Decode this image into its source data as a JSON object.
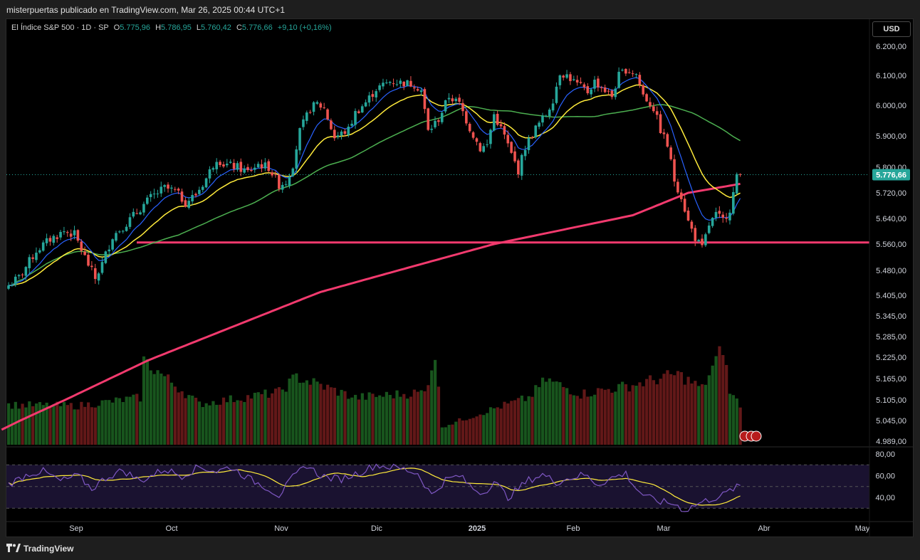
{
  "header": {
    "attribution": "misterpuertas publicado en TradingView.com, Mar 26, 2025 00:44 UTC+1"
  },
  "legend": {
    "symbol": "El Índice S&P 500 · 1D · SP",
    "open_label": "O",
    "open": "5.775,96",
    "high_label": "H",
    "high": "5.786,95",
    "low_label": "L",
    "low": "5.760,42",
    "close_label": "C",
    "close": "5.776,66",
    "change": "+9,10 (+0,16%)"
  },
  "currency_button": "USD",
  "footer": {
    "brand": "TradingView"
  },
  "colors": {
    "up": "#26a69a",
    "down": "#ef5350",
    "ema_fast": "#2962ff",
    "ema_mid": "#ffeb3b",
    "sma_50": "#4caf50",
    "sma_200": "#f23a6e",
    "support": "#f23a6e",
    "rsi": "#7e57c2",
    "rsi_ma": "#ffeb3b",
    "price_label_bg": "#26a69a"
  },
  "chart_data": {
    "type": "candlestick",
    "current_price_label": "5.776,66",
    "price_axis_ticks": [
      "6.200,00",
      "6.100,00",
      "6.000,00",
      "5.900,00",
      "5.800,00",
      "5.720,00",
      "5.640,00",
      "5.560,00",
      "5.480,00",
      "5.405,00",
      "5.345,00",
      "5.285,00",
      "5.225,00",
      "5.165,00",
      "5.105,00",
      "5.045,00",
      "4.989,00"
    ],
    "price_axis_values": [
      6200,
      6100,
      6000,
      5900,
      5800,
      5720,
      5640,
      5560,
      5480,
      5405,
      5345,
      5285,
      5225,
      5165,
      5105,
      5045,
      4989
    ],
    "time_axis_ticks": [
      "Sep",
      "Oct",
      "Nov",
      "Dic",
      "2025",
      "Feb",
      "Mar",
      "Abr",
      "May"
    ],
    "ylim": [
      4989,
      6230
    ],
    "horizontal_line": 5565,
    "close_anchors": [
      [
        0,
        5435
      ],
      [
        3,
        5458
      ],
      [
        8,
        5540
      ],
      [
        12,
        5575
      ],
      [
        16,
        5600
      ],
      [
        19,
        5590
      ],
      [
        22,
        5520
      ],
      [
        25,
        5455
      ],
      [
        27,
        5500
      ],
      [
        30,
        5585
      ],
      [
        34,
        5625
      ],
      [
        37,
        5660
      ],
      [
        41,
        5705
      ],
      [
        45,
        5735
      ],
      [
        48,
        5725
      ],
      [
        51,
        5690
      ],
      [
        54,
        5715
      ],
      [
        57,
        5765
      ],
      [
        60,
        5830
      ],
      [
        62,
        5810
      ],
      [
        66,
        5800
      ],
      [
        69,
        5785
      ],
      [
        72,
        5810
      ],
      [
        75,
        5800
      ],
      [
        78,
        5745
      ],
      [
        80,
        5755
      ],
      [
        82,
        5810
      ],
      [
        84,
        5915
      ],
      [
        87,
        5990
      ],
      [
        89,
        6005
      ],
      [
        91,
        5990
      ],
      [
        94,
        5895
      ],
      [
        98,
        5920
      ],
      [
        100,
        5975
      ],
      [
        103,
        6010
      ],
      [
        106,
        6055
      ],
      [
        110,
        6080
      ],
      [
        114,
        6075
      ],
      [
        117,
        6070
      ],
      [
        119,
        6050
      ],
      [
        121,
        5915
      ],
      [
        124,
        5955
      ],
      [
        127,
        6030
      ],
      [
        130,
        6005
      ],
      [
        133,
        5925
      ],
      [
        136,
        5860
      ],
      [
        138,
        5870
      ],
      [
        140,
        5970
      ],
      [
        143,
        5900
      ],
      [
        145,
        5840
      ],
      [
        147,
        5790
      ],
      [
        149,
        5865
      ],
      [
        152,
        5925
      ],
      [
        155,
        5970
      ],
      [
        157,
        6020
      ],
      [
        159,
        6110
      ],
      [
        161,
        6100
      ],
      [
        164,
        6070
      ],
      [
        167,
        6045
      ],
      [
        169,
        6080
      ],
      [
        172,
        6050
      ],
      [
        174,
        6030
      ],
      [
        176,
        6100
      ],
      [
        178,
        6120
      ],
      [
        181,
        6105
      ],
      [
        183,
        6035
      ],
      [
        186,
        5990
      ],
      [
        188,
        5920
      ],
      [
        190,
        5870
      ],
      [
        192,
        5760
      ],
      [
        194,
        5710
      ],
      [
        196,
        5630
      ],
      [
        198,
        5580
      ],
      [
        200,
        5545
      ],
      [
        202,
        5620
      ],
      [
        204,
        5650
      ],
      [
        206,
        5635
      ],
      [
        208,
        5670
      ],
      [
        210,
        5767
      ],
      [
        211,
        5776
      ]
    ],
    "volume_anchors": [
      [
        0,
        0.44
      ],
      [
        20,
        0.43
      ],
      [
        38,
        0.52
      ],
      [
        39,
        0.93
      ],
      [
        55,
        0.45
      ],
      [
        78,
        0.58
      ],
      [
        83,
        0.75
      ],
      [
        100,
        0.52
      ],
      [
        120,
        0.58
      ],
      [
        123,
        1.0
      ],
      [
        125,
        0.2
      ],
      [
        140,
        0.4
      ],
      [
        150,
        0.52
      ],
      [
        155,
        0.72
      ],
      [
        165,
        0.56
      ],
      [
        180,
        0.66
      ],
      [
        193,
        0.78
      ],
      [
        200,
        0.62
      ],
      [
        206,
        1.08
      ],
      [
        208,
        0.58
      ],
      [
        211,
        0.44
      ]
    ],
    "volume_max": 1.1,
    "rsi": {
      "ylim": [
        25,
        85
      ],
      "axis_ticks": [
        "80,00",
        "60,00",
        "40,00"
      ],
      "axis_values": [
        80,
        60,
        40
      ],
      "bands": [
        70,
        50,
        30
      ],
      "anchors": [
        [
          0,
          52
        ],
        [
          6,
          62
        ],
        [
          10,
          64
        ],
        [
          15,
          55
        ],
        [
          20,
          60
        ],
        [
          24,
          48
        ],
        [
          28,
          58
        ],
        [
          33,
          65
        ],
        [
          38,
          55
        ],
        [
          45,
          66
        ],
        [
          50,
          60
        ],
        [
          55,
          68
        ],
        [
          60,
          64
        ],
        [
          64,
          68
        ],
        [
          70,
          56
        ],
        [
          74,
          50
        ],
        [
          78,
          42
        ],
        [
          82,
          58
        ],
        [
          86,
          70
        ],
        [
          89,
          62
        ],
        [
          92,
          58
        ],
        [
          96,
          57
        ],
        [
          102,
          64
        ],
        [
          106,
          70
        ],
        [
          110,
          68
        ],
        [
          114,
          66
        ],
        [
          118,
          62
        ],
        [
          122,
          42
        ],
        [
          126,
          56
        ],
        [
          130,
          60
        ],
        [
          134,
          48
        ],
        [
          137,
          44
        ],
        [
          140,
          55
        ],
        [
          144,
          40
        ],
        [
          147,
          48
        ],
        [
          150,
          56
        ],
        [
          154,
          61
        ],
        [
          158,
          54
        ],
        [
          162,
          58
        ],
        [
          166,
          61
        ],
        [
          170,
          52
        ],
        [
          174,
          58
        ],
        [
          178,
          62
        ],
        [
          181,
          48
        ],
        [
          184,
          40
        ],
        [
          188,
          36
        ],
        [
          192,
          34
        ],
        [
          195,
          28
        ],
        [
          198,
          33
        ],
        [
          202,
          38
        ],
        [
          206,
          42
        ],
        [
          209,
          48
        ],
        [
          211,
          50
        ]
      ]
    }
  }
}
